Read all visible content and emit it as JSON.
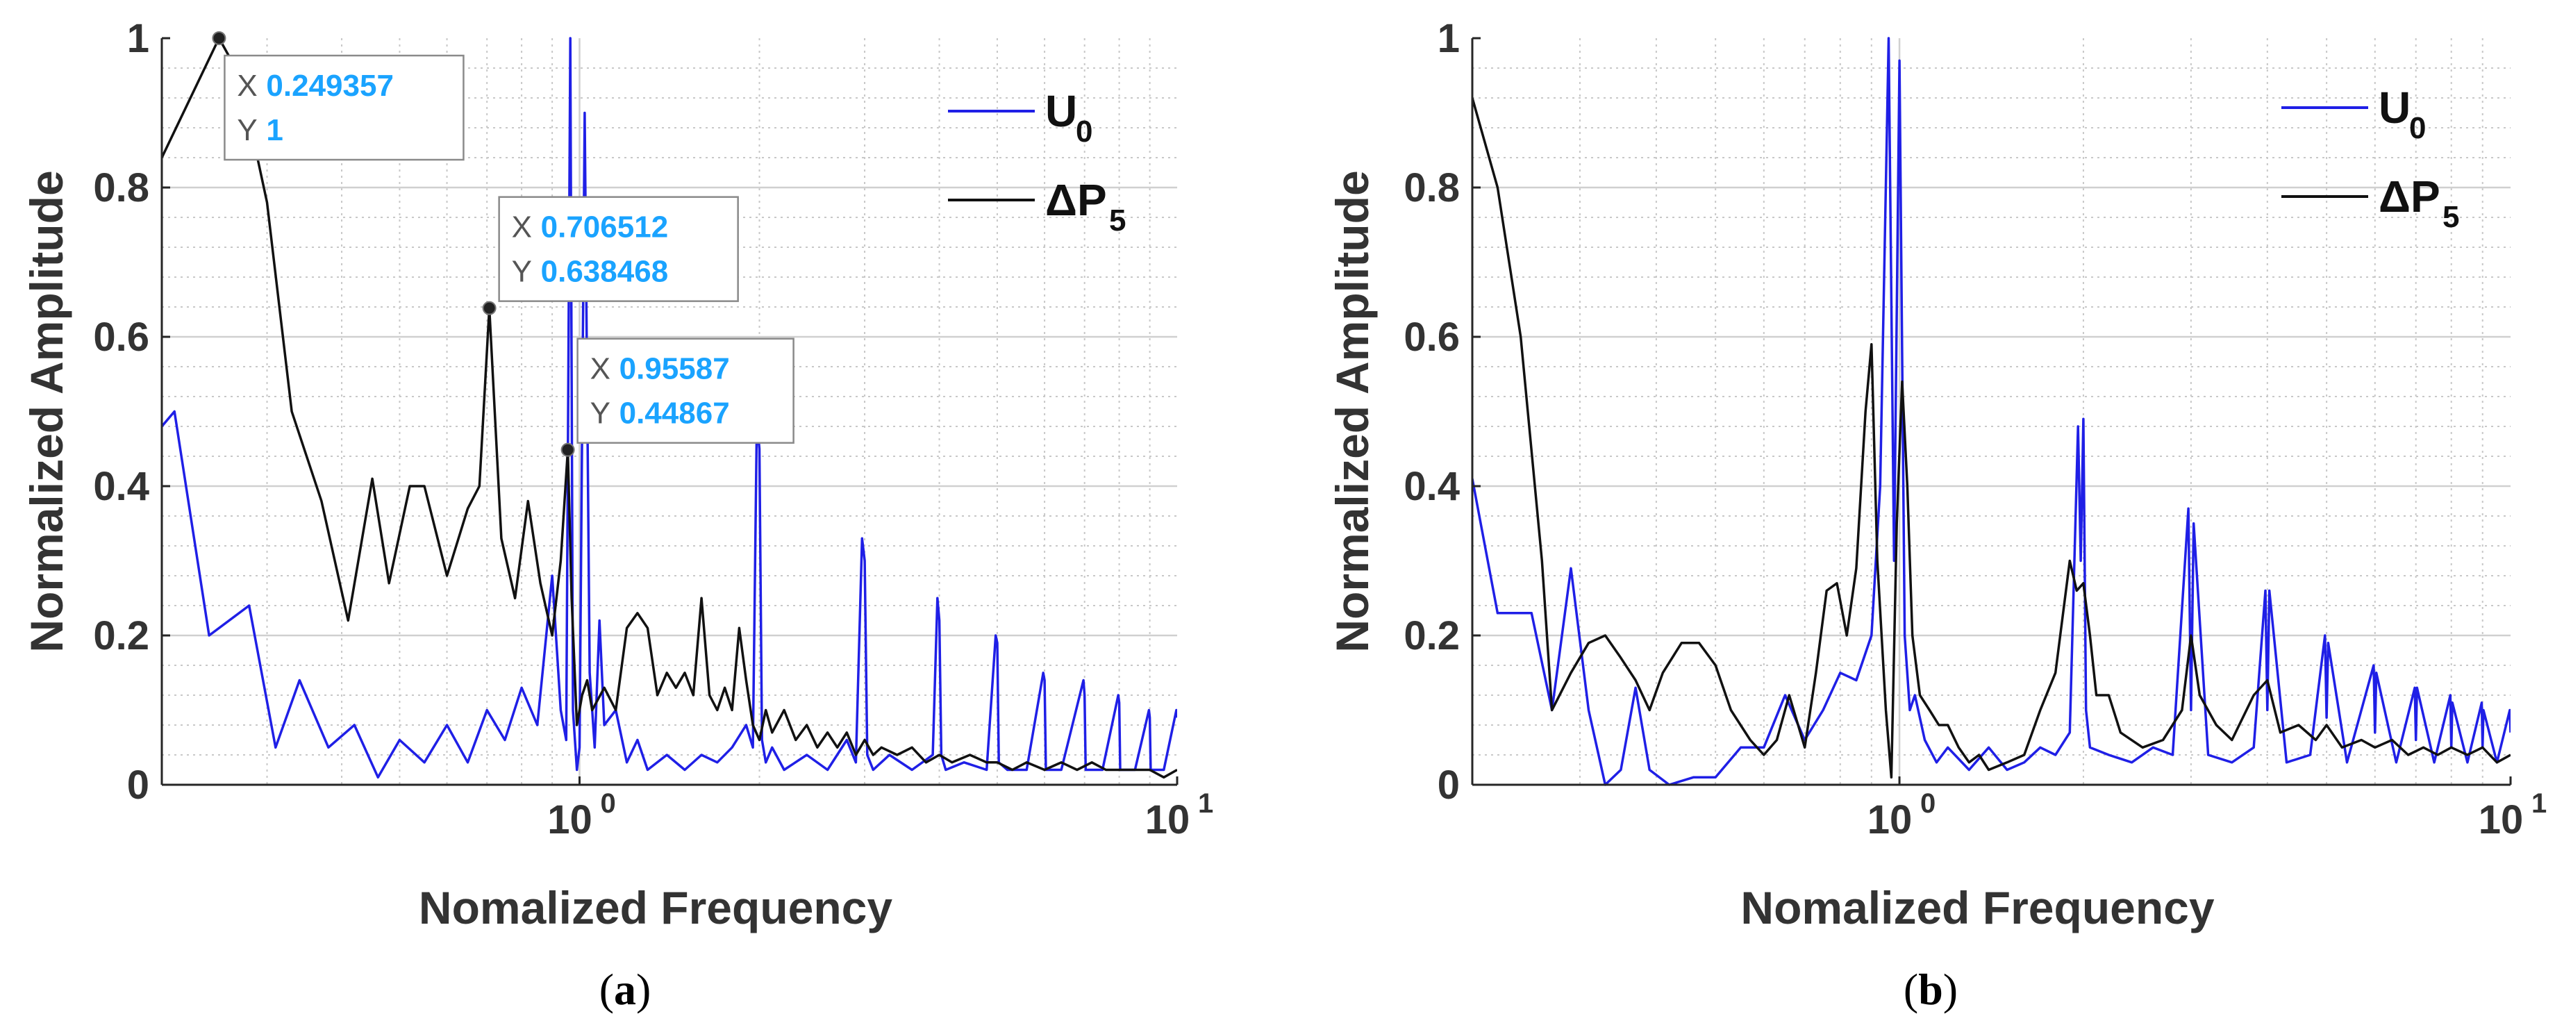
{
  "figure": {
    "captions": [
      "a",
      "b"
    ]
  },
  "chart_data": [
    {
      "id": "a",
      "type": "line",
      "x_scale": "log",
      "xlabel": "Nomalized Frequency",
      "ylabel": "Normalized Amplitude",
      "xlim": [
        0.2,
        10
      ],
      "ylim": [
        0,
        1
      ],
      "xticks": [
        {
          "value": 1,
          "label": "10",
          "exp": "0"
        },
        {
          "value": 10,
          "label": "10",
          "exp": "1"
        }
      ],
      "yticks": [
        {
          "value": 0,
          "label": "0"
        },
        {
          "value": 0.2,
          "label": "0.2"
        },
        {
          "value": 0.4,
          "label": "0.4"
        },
        {
          "value": 0.6,
          "label": "0.6"
        },
        {
          "value": 0.8,
          "label": "0.8"
        },
        {
          "value": 1,
          "label": "1"
        }
      ],
      "grid": true,
      "legend_position": "top-right",
      "series": [
        {
          "name": "U",
          "sub": "0",
          "color": "#1f1fe6",
          "x": [
            0.2,
            0.21,
            0.24,
            0.28,
            0.31,
            0.34,
            0.38,
            0.42,
            0.46,
            0.5,
            0.55,
            0.6,
            0.65,
            0.7,
            0.75,
            0.8,
            0.85,
            0.9,
            0.93,
            0.95,
            0.965,
            0.975,
            0.99,
            1.0,
            1.02,
            1.04,
            1.06,
            1.08,
            1.1,
            1.15,
            1.2,
            1.25,
            1.3,
            1.4,
            1.5,
            1.6,
            1.7,
            1.8,
            1.9,
            1.95,
            1.98,
            2.0,
            2.02,
            2.05,
            2.1,
            2.2,
            2.4,
            2.6,
            2.8,
            2.9,
            2.97,
            3.0,
            3.03,
            3.1,
            3.3,
            3.6,
            3.9,
            3.97,
            4.0,
            4.03,
            4.1,
            4.4,
            4.8,
            4.97,
            5.0,
            5.03,
            5.2,
            5.6,
            5.97,
            6.0,
            6.03,
            6.4,
            6.97,
            7.0,
            7.03,
            7.5,
            7.97,
            8.0,
            8.03,
            8.5,
            8.97,
            9.0,
            9.03,
            9.5,
            9.97,
            10.0
          ],
          "y": [
            0.48,
            0.5,
            0.2,
            0.24,
            0.05,
            0.14,
            0.05,
            0.08,
            0.01,
            0.06,
            0.03,
            0.08,
            0.03,
            0.1,
            0.06,
            0.13,
            0.08,
            0.28,
            0.1,
            0.06,
            1.0,
            0.1,
            0.02,
            0.05,
            0.9,
            0.15,
            0.05,
            0.22,
            0.08,
            0.1,
            0.03,
            0.06,
            0.02,
            0.04,
            0.02,
            0.04,
            0.03,
            0.05,
            0.08,
            0.05,
            0.49,
            0.45,
            0.06,
            0.03,
            0.05,
            0.02,
            0.04,
            0.02,
            0.06,
            0.03,
            0.33,
            0.3,
            0.04,
            0.02,
            0.04,
            0.02,
            0.04,
            0.25,
            0.22,
            0.04,
            0.02,
            0.03,
            0.02,
            0.2,
            0.19,
            0.03,
            0.02,
            0.02,
            0.15,
            0.14,
            0.02,
            0.02,
            0.14,
            0.12,
            0.02,
            0.02,
            0.12,
            0.11,
            0.02,
            0.02,
            0.1,
            0.09,
            0.02,
            0.02,
            0.1,
            0.09
          ]
        },
        {
          "name": "ΔP",
          "sub": "5",
          "color": "#111111",
          "x": [
            0.2,
            0.249357,
            0.27,
            0.3,
            0.33,
            0.37,
            0.41,
            0.45,
            0.48,
            0.52,
            0.55,
            0.6,
            0.65,
            0.68,
            0.706512,
            0.74,
            0.78,
            0.82,
            0.86,
            0.9,
            0.93,
            0.95587,
            0.97,
            0.99,
            1.01,
            1.03,
            1.05,
            1.1,
            1.15,
            1.2,
            1.25,
            1.3,
            1.35,
            1.4,
            1.45,
            1.5,
            1.55,
            1.6,
            1.65,
            1.7,
            1.75,
            1.8,
            1.85,
            1.9,
            1.95,
            2.0,
            2.05,
            2.1,
            2.2,
            2.3,
            2.4,
            2.5,
            2.6,
            2.7,
            2.8,
            2.9,
            3.0,
            3.1,
            3.2,
            3.4,
            3.6,
            3.8,
            4.0,
            4.2,
            4.5,
            4.8,
            5.0,
            5.3,
            5.6,
            6.0,
            6.4,
            6.8,
            7.2,
            7.6,
            8.0,
            8.5,
            9.0,
            9.5,
            10.0
          ],
          "y": [
            0.84,
            1.0,
            0.95,
            0.78,
            0.5,
            0.38,
            0.22,
            0.41,
            0.27,
            0.4,
            0.4,
            0.28,
            0.37,
            0.4,
            0.638468,
            0.33,
            0.25,
            0.38,
            0.27,
            0.2,
            0.3,
            0.44867,
            0.25,
            0.08,
            0.12,
            0.14,
            0.1,
            0.13,
            0.1,
            0.21,
            0.23,
            0.21,
            0.12,
            0.15,
            0.13,
            0.15,
            0.12,
            0.25,
            0.12,
            0.1,
            0.13,
            0.1,
            0.21,
            0.14,
            0.08,
            0.06,
            0.1,
            0.07,
            0.1,
            0.06,
            0.08,
            0.05,
            0.07,
            0.05,
            0.07,
            0.04,
            0.06,
            0.04,
            0.05,
            0.04,
            0.05,
            0.03,
            0.04,
            0.03,
            0.04,
            0.03,
            0.03,
            0.02,
            0.03,
            0.02,
            0.03,
            0.02,
            0.03,
            0.02,
            0.02,
            0.02,
            0.02,
            0.01,
            0.02
          ]
        }
      ],
      "datatips": [
        {
          "x": 0.249357,
          "y": 1,
          "x_text": "0.249357",
          "y_text": "1",
          "placement": "below-right"
        },
        {
          "x": 0.706512,
          "y": 0.638468,
          "x_text": "0.706512",
          "y_text": "0.638468",
          "placement": "above-right"
        },
        {
          "x": 0.95587,
          "y": 0.44867,
          "x_text": "0.95587",
          "y_text": "0.44867",
          "placement": "above-right"
        }
      ],
      "datatip_labels": {
        "x": "X",
        "y": "Y"
      }
    },
    {
      "id": "b",
      "type": "line",
      "x_scale": "log",
      "xlabel": "Nomalized Frequency",
      "ylabel": "Normalized Amplitude",
      "xlim": [
        0.2,
        10
      ],
      "ylim": [
        0,
        1
      ],
      "xticks": [
        {
          "value": 1,
          "label": "10",
          "exp": "0"
        },
        {
          "value": 10,
          "label": "10",
          "exp": "1"
        }
      ],
      "yticks": [
        {
          "value": 0,
          "label": "0"
        },
        {
          "value": 0.2,
          "label": "0.2"
        },
        {
          "value": 0.4,
          "label": "0.4"
        },
        {
          "value": 0.6,
          "label": "0.6"
        },
        {
          "value": 0.8,
          "label": "0.8"
        },
        {
          "value": 1,
          "label": "1"
        }
      ],
      "grid": true,
      "legend_position": "top-right",
      "series": [
        {
          "name": "U",
          "sub": "0",
          "color": "#1f1fe6",
          "x": [
            0.2,
            0.22,
            0.25,
            0.27,
            0.29,
            0.31,
            0.33,
            0.35,
            0.37,
            0.39,
            0.42,
            0.46,
            0.5,
            0.55,
            0.6,
            0.65,
            0.7,
            0.75,
            0.8,
            0.85,
            0.9,
            0.93,
            0.96,
            0.98,
            1.0,
            1.02,
            1.04,
            1.06,
            1.1,
            1.15,
            1.2,
            1.3,
            1.4,
            1.5,
            1.6,
            1.7,
            1.8,
            1.9,
            1.96,
            1.98,
            2.0,
            2.02,
            2.05,
            2.2,
            2.4,
            2.6,
            2.8,
            2.97,
            3.0,
            3.03,
            3.2,
            3.5,
            3.8,
            3.97,
            4.0,
            4.03,
            4.3,
            4.7,
            4.97,
            5.0,
            5.03,
            5.4,
            5.97,
            6.0,
            6.03,
            6.5,
            6.97,
            7.0,
            7.03,
            7.5,
            7.97,
            8.0,
            8.03,
            8.5,
            8.97,
            9.0,
            9.03,
            9.5,
            9.97,
            10.0
          ],
          "y": [
            0.41,
            0.23,
            0.23,
            0.1,
            0.29,
            0.1,
            0.0,
            0.02,
            0.13,
            0.02,
            0.0,
            0.01,
            0.01,
            0.05,
            0.05,
            0.12,
            0.06,
            0.1,
            0.15,
            0.14,
            0.2,
            0.4,
            1.0,
            0.3,
            0.97,
            0.2,
            0.1,
            0.12,
            0.06,
            0.03,
            0.05,
            0.02,
            0.05,
            0.02,
            0.03,
            0.05,
            0.04,
            0.07,
            0.48,
            0.3,
            0.49,
            0.1,
            0.05,
            0.04,
            0.03,
            0.05,
            0.04,
            0.37,
            0.1,
            0.35,
            0.04,
            0.03,
            0.05,
            0.26,
            0.1,
            0.26,
            0.03,
            0.04,
            0.2,
            0.09,
            0.19,
            0.03,
            0.16,
            0.07,
            0.15,
            0.03,
            0.13,
            0.06,
            0.13,
            0.03,
            0.12,
            0.05,
            0.11,
            0.03,
            0.11,
            0.05,
            0.1,
            0.03,
            0.1,
            0.07
          ]
        },
        {
          "name": "ΔP",
          "sub": "5",
          "color": "#111111",
          "x": [
            0.2,
            0.22,
            0.24,
            0.26,
            0.27,
            0.29,
            0.31,
            0.33,
            0.35,
            0.37,
            0.39,
            0.41,
            0.44,
            0.47,
            0.5,
            0.53,
            0.57,
            0.6,
            0.63,
            0.66,
            0.7,
            0.73,
            0.76,
            0.79,
            0.82,
            0.85,
            0.88,
            0.9,
            0.92,
            0.95,
            0.97,
            0.99,
            1.01,
            1.03,
            1.05,
            1.08,
            1.12,
            1.16,
            1.2,
            1.25,
            1.3,
            1.35,
            1.4,
            1.5,
            1.6,
            1.7,
            1.8,
            1.9,
            1.95,
            2.0,
            2.05,
            2.1,
            2.2,
            2.3,
            2.5,
            2.7,
            2.9,
            3.0,
            3.1,
            3.3,
            3.5,
            3.8,
            4.0,
            4.2,
            4.5,
            4.8,
            5.0,
            5.3,
            5.7,
            6.0,
            6.4,
            6.8,
            7.2,
            7.6,
            8.0,
            8.5,
            9.0,
            9.5,
            10.0
          ],
          "y": [
            0.92,
            0.8,
            0.6,
            0.3,
            0.1,
            0.15,
            0.19,
            0.2,
            0.17,
            0.14,
            0.1,
            0.15,
            0.19,
            0.19,
            0.16,
            0.1,
            0.06,
            0.04,
            0.06,
            0.12,
            0.05,
            0.15,
            0.26,
            0.27,
            0.2,
            0.29,
            0.5,
            0.59,
            0.3,
            0.1,
            0.01,
            0.35,
            0.54,
            0.4,
            0.2,
            0.12,
            0.1,
            0.08,
            0.08,
            0.05,
            0.03,
            0.04,
            0.02,
            0.03,
            0.04,
            0.1,
            0.15,
            0.3,
            0.26,
            0.27,
            0.2,
            0.12,
            0.12,
            0.07,
            0.05,
            0.06,
            0.1,
            0.2,
            0.12,
            0.08,
            0.06,
            0.12,
            0.14,
            0.07,
            0.08,
            0.06,
            0.08,
            0.05,
            0.06,
            0.05,
            0.06,
            0.04,
            0.05,
            0.04,
            0.05,
            0.04,
            0.05,
            0.03,
            0.04
          ]
        }
      ],
      "datatips": [],
      "datatip_labels": {
        "x": "X",
        "y": "Y"
      }
    }
  ]
}
